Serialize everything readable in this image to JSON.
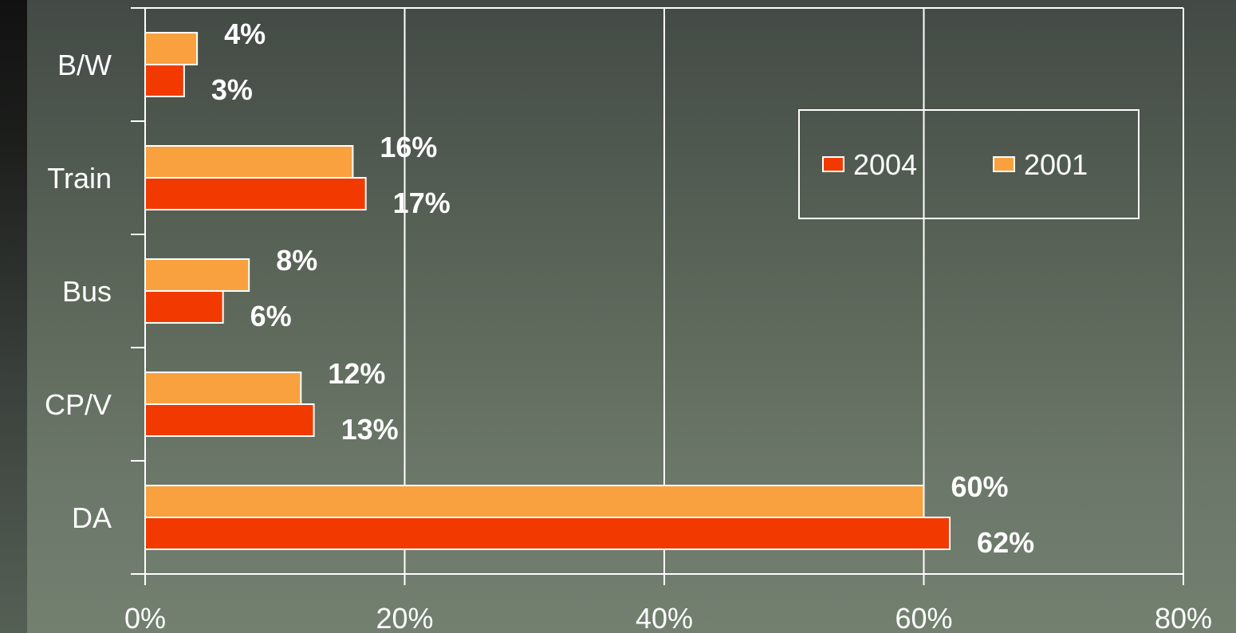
{
  "chart_data": {
    "type": "bar",
    "orientation": "horizontal",
    "categories": [
      "B/W",
      "Train",
      "Bus",
      "CP/V",
      "DA"
    ],
    "series": [
      {
        "name": "2004",
        "values": [
          3,
          17,
          6,
          13,
          62
        ],
        "labels": [
          "3%",
          "17%",
          "6%",
          "13%",
          "62%"
        ],
        "color": "#f23a00"
      },
      {
        "name": "2001",
        "values": [
          4,
          16,
          8,
          12,
          60
        ],
        "labels": [
          "4%",
          "16%",
          "8%",
          "12%",
          "60%"
        ],
        "color": "#f9a13f"
      }
    ],
    "xlim": [
      0,
      80
    ],
    "x_ticks": [
      0,
      20,
      40,
      60,
      80
    ],
    "x_tick_labels": [
      "0%",
      "20%",
      "40%",
      "60%",
      "80%"
    ],
    "grid": true,
    "legend": "top-right",
    "title": "",
    "xlabel": "",
    "ylabel": ""
  }
}
